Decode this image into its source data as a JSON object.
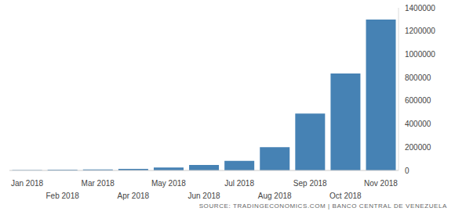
{
  "chart_data": {
    "type": "bar",
    "categories": [
      "Jan 2018",
      "Feb 2018",
      "Mar 2018",
      "Apr 2018",
      "May 2018",
      "Jun 2018",
      "Jul 2018",
      "Aug 2018",
      "Sep 2018",
      "Oct 2018",
      "Nov 2018"
    ],
    "values": [
      4000,
      6000,
      8900,
      13800,
      24600,
      46300,
      82700,
      200000,
      488900,
      834000,
      1299700
    ],
    "color": "#4682b4",
    "ylim": [
      0,
      1400000
    ],
    "yticks": [
      0,
      200000,
      400000,
      600000,
      800000,
      1000000,
      1200000,
      1400000
    ],
    "grid": false,
    "annotations": [
      "SOURCE: TRADINGECONOMICS.COM | BANCO CENTRAL DE VENEZUELA"
    ]
  }
}
